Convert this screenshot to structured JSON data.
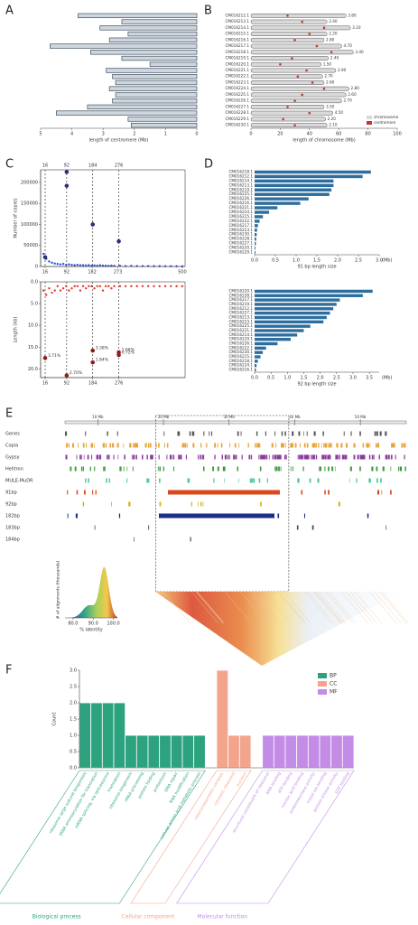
{
  "chart_data": [
    {
      "type": "barh",
      "panel": "A",
      "xlabel": "length of centromere (Mb)",
      "color": "#cdd6de",
      "stroke": "#2b3a4a",
      "values": [
        3.8,
        2.4,
        3.1,
        2.2,
        2.8,
        4.7,
        3.4,
        2.4,
        1.5,
        2.9,
        2.7,
        2.6,
        2.8,
        2.6,
        2.7,
        3.5,
        4.5,
        2.2,
        2.1
      ],
      "xlim": [
        5,
        0
      ],
      "xticks": [
        5,
        4,
        3,
        2,
        1,
        0
      ]
    },
    {
      "type": "chromosome",
      "panel": "B",
      "xlabel": "length of chromosome (Mb)",
      "categories": [
        "CM016212.1",
        "CM016213.1",
        "CM016214.1",
        "CM016215.1",
        "CM016216.1",
        "CM016217.1",
        "CM016218.1",
        "CM016219.1",
        "CM016220.1",
        "CM016221.1",
        "CM016222.1",
        "CM016223.1",
        "CM016224.1",
        "CM016225.1",
        "CM016226.1",
        "CM016227.1",
        "CM016228.1",
        "CM016229.1",
        "CM016230.1"
      ],
      "series": [
        {
          "name": "chromosome",
          "color": "#d9d9d9",
          "values": [
            65,
            52,
            68,
            52,
            50,
            62,
            70,
            53,
            48,
            58,
            49,
            50,
            67,
            65,
            62,
            50,
            56,
            51,
            52
          ]
        },
        {
          "name": "centromere",
          "color": "#c0392b",
          "values": [
            25,
            35,
            50,
            40,
            30,
            45,
            55,
            28,
            20,
            38,
            32,
            42,
            50,
            35,
            30,
            25,
            40,
            22,
            30
          ]
        }
      ],
      "bar_labels": [
        "3.80",
        "2.40",
        "3.10",
        "2.20",
        "2.80",
        "4.70",
        "3.40",
        "2.40",
        "1.50",
        "2.90",
        "2.70",
        "2.60",
        "2.80",
        "2.60",
        "2.70",
        "3.50",
        "4.50",
        "2.20",
        "2.10"
      ],
      "xlim": [
        0,
        100
      ],
      "xticks": [
        0,
        20,
        40,
        60,
        80,
        100
      ]
    },
    {
      "type": "scatter",
      "panel": "C",
      "ylabel": "Number of copies",
      "xlim": [
        0,
        510
      ],
      "xticks": [
        16,
        92,
        182,
        273,
        500
      ],
      "top_ticks": [
        16,
        92,
        184,
        276
      ],
      "ylim": [
        0,
        230000
      ],
      "yticks": [
        0,
        50000,
        100000,
        150000,
        200000
      ],
      "series": [
        {
          "color": "#2f4fd6",
          "x": [
            10,
            20,
            30,
            40,
            50,
            60,
            70,
            80,
            90,
            100,
            110,
            120,
            130,
            140,
            150,
            160,
            170,
            180,
            190,
            200,
            210,
            220,
            230,
            240,
            250,
            260,
            280,
            300,
            320,
            340,
            360,
            380,
            400,
            420,
            440,
            460,
            480,
            500
          ],
          "values": [
            30000,
            18000,
            12000,
            9000,
            7000,
            6000,
            5000,
            6000,
            4000,
            5000,
            4000,
            3000,
            4000,
            3000,
            3000,
            2500,
            3000,
            2000,
            2500,
            2000,
            3000,
            2000,
            2000,
            1500,
            2000,
            1500,
            1500,
            1000,
            1500,
            1000,
            1000,
            1000,
            800,
            800,
            600,
            600,
            500,
            500
          ]
        },
        {
          "color": "#2a2f7a",
          "size": 2.3,
          "x": [
            16,
            92,
            92,
            184,
            276
          ],
          "values": [
            22000,
            225000,
            192000,
            100000,
            60000
          ]
        }
      ]
    },
    {
      "type": "scatter",
      "ylabel": "Length (kb)",
      "invert_y": true,
      "xlim": [
        0,
        510
      ],
      "xticks": [
        16,
        92,
        184,
        276
      ],
      "ylim": [
        0,
        22
      ],
      "yticks": [
        {
          "value": 0,
          "label": "0.0"
        },
        {
          "value": 5,
          "label": "5.0"
        },
        {
          "value": 10,
          "label": "10.0"
        },
        {
          "value": 15,
          "label": "15.0"
        },
        {
          "value": 20,
          "label": "20.0"
        }
      ],
      "series": [
        {
          "color": "#e03a2a",
          "x": [
            10,
            20,
            30,
            40,
            50,
            60,
            70,
            80,
            90,
            100,
            110,
            120,
            130,
            140,
            150,
            160,
            170,
            180,
            190,
            200,
            210,
            220,
            230,
            240,
            250,
            260,
            280,
            300,
            320,
            340,
            360,
            380,
            400,
            420,
            440,
            460,
            480,
            500
          ],
          "values": [
            2,
            3,
            1.5,
            2.5,
            2,
            1,
            2,
            1.5,
            1,
            2,
            1.5,
            1,
            1,
            2,
            1,
            1.5,
            1,
            1,
            1.5,
            1,
            1,
            2,
            1,
            1,
            1.5,
            1,
            1,
            1,
            1,
            1,
            1,
            1,
            1,
            1,
            1,
            1,
            1,
            1
          ]
        },
        {
          "color": "#8c1d1d",
          "size": 2.3,
          "x": [
            16,
            92,
            184,
            184,
            276,
            276
          ],
          "values": [
            17.5,
            21.5,
            15.8,
            18.5,
            16.2,
            16.8
          ],
          "labels": [
            "3.71%",
            "2.70%",
            "3.38%",
            "1.84%",
            "1.66%",
            "0.72%"
          ]
        }
      ]
    },
    {
      "type": "barh",
      "panel": "D",
      "xlabel": "91 bp length size",
      "xunit": "(Mb)",
      "color": "#2e6e9e",
      "categories": [
        "CM016218.1",
        "CM016212.1",
        "CM016214.1",
        "CM016213.1",
        "CM016219.1",
        "CM016225.1",
        "CM016226.1",
        "CM016216.1",
        "CM016221.1",
        "CM016224.1",
        "CM016215.1",
        "CM016222.1",
        "CM016217.1",
        "CM016223.1",
        "CM016230.1",
        "CM016228.1",
        "CM016227.1",
        "CM016220.1",
        "CM016229.1"
      ],
      "values": [
        2.8,
        2.6,
        1.9,
        1.9,
        1.85,
        1.8,
        1.3,
        1.1,
        0.55,
        0.35,
        0.2,
        0.12,
        0.08,
        0.06,
        0.05,
        0.04,
        0.03,
        0.02,
        0.02
      ],
      "xlim": [
        0,
        3.0
      ],
      "xticks": [
        {
          "value": 0,
          "label": "0.0"
        },
        {
          "value": 0.5,
          "label": "0.5"
        },
        {
          "value": 1,
          "label": "1.0"
        },
        {
          "value": 1.5,
          "label": "1.5"
        },
        {
          "value": 2,
          "label": "2.0"
        },
        {
          "value": 2.5,
          "label": "2.5"
        },
        {
          "value": 3,
          "label": "3.0"
        }
      ]
    },
    {
      "type": "barh",
      "xlabel": "92 bp length size",
      "xunit": "(Mb)",
      "color": "#2e6e9e",
      "categories": [
        "CM016220.1",
        "CM016228.1",
        "CM016217.1",
        "CM016219.1",
        "CM016212.1",
        "CM016227.1",
        "CM016213.1",
        "CM016223.1",
        "CM016225.1",
        "CM016221.1",
        "CM016214.1",
        "CM016229.1",
        "CM016226.1",
        "CM016222.1",
        "CM016230.1",
        "CM016215.1",
        "CM016218.1",
        "CM016224.1",
        "CM016216.1"
      ],
      "values": [
        3.6,
        3.3,
        2.6,
        2.5,
        2.4,
        2.3,
        2.2,
        2.1,
        1.7,
        1.5,
        1.3,
        1.1,
        0.7,
        0.35,
        0.25,
        0.18,
        0.1,
        0.06,
        0.04
      ],
      "xlim": [
        0,
        3.8
      ],
      "xticks": [
        {
          "value": 0,
          "label": "0.0"
        },
        {
          "value": 0.5,
          "label": "0.5"
        },
        {
          "value": 1,
          "label": "1.0"
        },
        {
          "value": 1.5,
          "label": "1.5"
        },
        {
          "value": 2,
          "label": "2.0"
        },
        {
          "value": 2.5,
          "label": "2.5"
        },
        {
          "value": 3,
          "label": "3.0"
        },
        {
          "value": 3.5,
          "label": "3.5"
        }
      ]
    },
    {
      "type": "tracks",
      "panel": "E",
      "xlim": [
        5,
        57
      ],
      "xticks": [
        {
          "value": 10,
          "label": "10 Mb"
        },
        {
          "value": 20,
          "label": "20 Mb"
        },
        {
          "value": 30,
          "label": "30 Mb"
        },
        {
          "value": 40,
          "label": "40 Mb"
        },
        {
          "value": 50,
          "label": "50 Mb"
        }
      ],
      "highlight_region": [
        18.8,
        39.1
      ],
      "tracks": [
        {
          "name": "Genes",
          "color": "#555555"
        },
        {
          "name": "Copia",
          "color": "#e8a33a"
        },
        {
          "name": "Gypsy",
          "color": "#8b3a9c"
        },
        {
          "name": "Helitron",
          "color": "#3a9a3a"
        },
        {
          "name": "MULE-MuDR",
          "color": "#50c8a0"
        },
        {
          "name": "91bp",
          "color": "#d84a1b"
        },
        {
          "name": "92bp",
          "color": "#c8b400"
        },
        {
          "name": "182bp",
          "color": "#1a2f8c"
        },
        {
          "name": "183bp",
          "color": "#444444"
        },
        {
          "name": "184bp",
          "color": "#444444"
        }
      ]
    },
    {
      "type": "density",
      "ylabel": "# of alignments (thousands)",
      "xlabel": "% identity",
      "xlim": [
        76,
        102
      ],
      "xticks": [
        {
          "value": 80,
          "label": "80.0"
        },
        {
          "value": 90,
          "label": "90.0"
        },
        {
          "value": 100,
          "label": "100.0"
        }
      ]
    },
    {
      "type": "bar",
      "panel": "F",
      "ylabel": "Count",
      "ylim": [
        0,
        3
      ],
      "yticks": [
        {
          "value": 0,
          "label": "0.0"
        },
        {
          "value": 0.5,
          "label": "0.5"
        },
        {
          "value": 1,
          "label": "1.0"
        },
        {
          "value": 1.5,
          "label": "1.5"
        },
        {
          "value": 2,
          "label": "2.0"
        },
        {
          "value": 2.5,
          "label": "2.5"
        },
        {
          "value": 3,
          "label": "3.0"
        }
      ],
      "categories": [
        "ribosome large subunit biogenesis",
        "tRNA aminoacylation for translation",
        "mRNA splicing, via spliceosome",
        "translation",
        "ribosome biogenesis",
        "rRNA processing",
        "protein folding",
        "proteolysis",
        "DNA repair",
        "RNA modification",
        "cellular amino acid metabolic process",
        "ribonucleoprotein complex",
        "cytosolic ribosome",
        "nucleus",
        "structural constituent of ribosome",
        "RNA binding",
        "ATP binding",
        "nucleic acid binding",
        "oxidoreductase activity",
        "metal ion binding",
        "protein kinase activity",
        "GTP binding"
      ],
      "series": [
        {
          "name": "BP",
          "color": "#2ca27f",
          "values": [
            2,
            2,
            2,
            2,
            1,
            1,
            1,
            1,
            1,
            1,
            1,
            null,
            null,
            null,
            null,
            null,
            null,
            null,
            null,
            null,
            null,
            null
          ]
        },
        {
          "name": "CC",
          "color": "#f2a58c",
          "values": [
            null,
            null,
            null,
            null,
            null,
            null,
            null,
            null,
            null,
            null,
            null,
            3,
            1,
            1,
            null,
            null,
            null,
            null,
            null,
            null,
            null,
            null
          ]
        },
        {
          "name": "MF",
          "color": "#c38ce6",
          "values": [
            null,
            null,
            null,
            null,
            null,
            null,
            null,
            null,
            null,
            null,
            null,
            null,
            null,
            null,
            1,
            1,
            1,
            1,
            1,
            1,
            1,
            1
          ]
        }
      ],
      "group_labels": [
        "Biological process",
        "Cellular component",
        "Molecular function"
      ]
    }
  ]
}
